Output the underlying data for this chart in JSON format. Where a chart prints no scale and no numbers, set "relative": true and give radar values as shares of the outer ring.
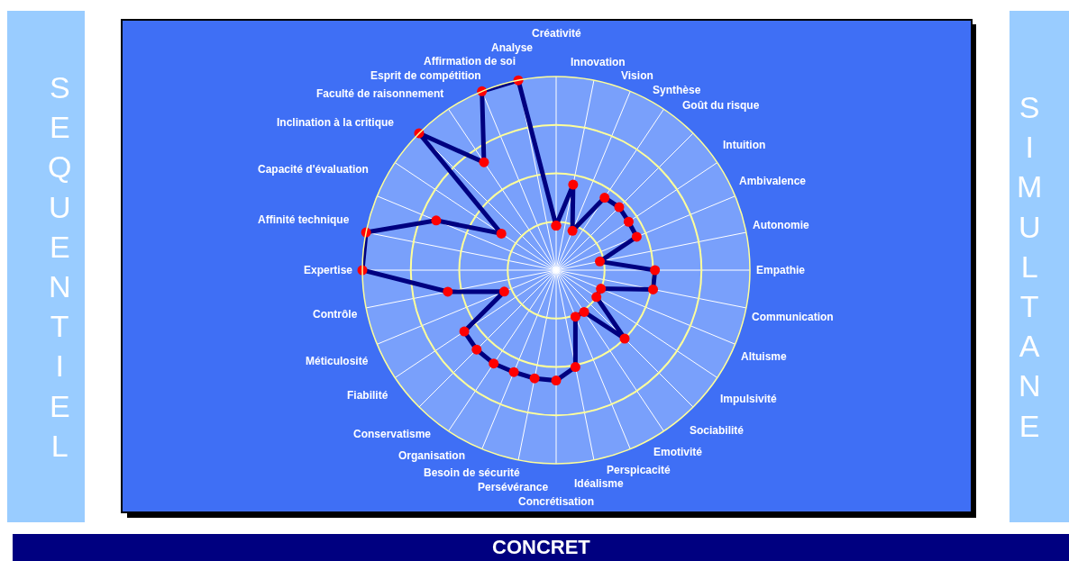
{
  "chart_data": {
    "type": "radar",
    "relative": true,
    "grid": true,
    "marker": "circle",
    "line_style": "solid",
    "categories": [
      "Créativité",
      "Innovation",
      "Vision",
      "Synthèse",
      "Goût du risque",
      "Intuition",
      "Ambivalence",
      "Autonomie",
      "Empathie",
      "Communication",
      "Altuisme",
      "Impulsivité",
      "Sociabilité",
      "Emotivité",
      "Perspicacité",
      "Idéalisme",
      "Concrétisation",
      "Persévérance",
      "Besoin de sécurité",
      "Organisation",
      "Conservatisme",
      "Fiabilité",
      "Méticulosité",
      "Contrôle",
      "Expertise",
      "Affinité technique",
      "Capacité d'évaluation",
      "Inclination à la critique",
      "Faculté de raisonnement",
      "Esprit de compétition",
      "Affirmation de soi",
      "Analyse"
    ],
    "series": [
      {
        "color": "#000080",
        "colors": [
          "#ff0000",
          "#ff0000",
          "#ff0000",
          "#ff0000",
          "#ff0000",
          "#ff0000",
          "#ff0000",
          "#ff0000",
          "#ff0000",
          "#ff0000",
          "#ff0000",
          "#ff0000",
          "#ff0000",
          "#ff0000",
          "#ff0000",
          "#ff0000",
          "#ff0000",
          "#ff0000",
          "#ff0000",
          "#ff0000",
          "#ff0000",
          "#ff0000",
          "#ff0000",
          "#ff0000",
          "#ff0000",
          "#ff0000",
          "#ff0000",
          "#ff0000",
          "#ff0000",
          "#ff0000",
          "#ff0000",
          "#ff0000"
        ],
        "values": [
          0.23,
          0.45,
          0.22,
          0.45,
          0.46,
          0.45,
          0.45,
          0.23,
          0.51,
          0.51,
          0.25,
          0.25,
          0.5,
          0.26,
          0.26,
          0.51,
          0.57,
          0.57,
          0.57,
          0.58,
          0.58,
          0.57,
          0.29,
          0.57,
          1.0,
          1.0,
          0.67,
          0.34,
          1.0,
          0.67,
          1.0,
          1.0
        ]
      }
    ],
    "annotations": [
      "SEQUENTIEL",
      "SIMULTANE",
      "CONCRET"
    ]
  }
}
